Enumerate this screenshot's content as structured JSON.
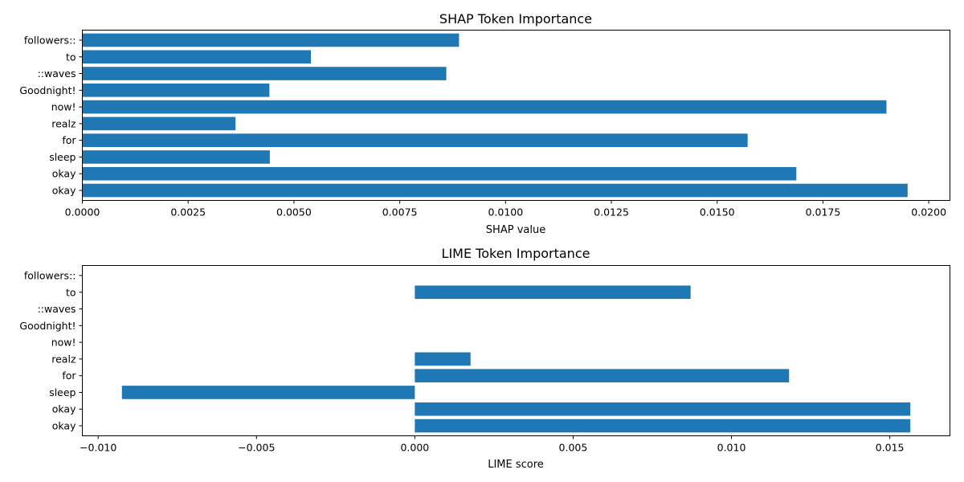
{
  "chart_data": [
    {
      "type": "bar",
      "orientation": "horizontal",
      "title": "SHAP Token Importance",
      "xlabel": "SHAP value",
      "ylabel": "",
      "categories": [
        "okay",
        "okay",
        "sleep",
        "for",
        "realz",
        "now!",
        "Goodnight!",
        "::waves",
        "to",
        "followers::"
      ],
      "values": [
        0.0195,
        0.01687,
        0.00443,
        0.01572,
        0.00362,
        0.019,
        0.00442,
        0.0086,
        0.0054,
        0.0089
      ],
      "xlim": [
        0.0,
        0.0205
      ],
      "xticks": [
        "0.0000",
        "0.0025",
        "0.0050",
        "0.0075",
        "0.0100",
        "0.0125",
        "0.0150",
        "0.0175",
        "0.0200"
      ],
      "xtick_values": [
        0.0,
        0.0025,
        0.005,
        0.0075,
        0.01,
        0.0125,
        0.015,
        0.0175,
        0.02
      ],
      "color": "#1f77b4",
      "grid": false,
      "legend": "none"
    },
    {
      "type": "bar",
      "orientation": "horizontal",
      "title": "LIME Token Importance",
      "xlabel": "LIME score",
      "ylabel": "",
      "categories": [
        "okay",
        "okay",
        "sleep",
        "for",
        "realz",
        "now!",
        "Goodnight!",
        "::waves",
        "to",
        "followers::"
      ],
      "values": [
        0.01565,
        0.01565,
        -0.00925,
        0.01182,
        0.00176,
        0.0,
        0.0,
        0.0,
        0.00871,
        0.0
      ],
      "xlim": [
        -0.0105,
        0.0169
      ],
      "xticks": [
        "−0.010",
        "−0.005",
        "0.000",
        "0.005",
        "0.010",
        "0.015"
      ],
      "xtick_values": [
        -0.01,
        -0.005,
        0.0,
        0.005,
        0.01,
        0.015
      ],
      "color": "#1f77b4",
      "grid": false,
      "legend": "none"
    }
  ]
}
